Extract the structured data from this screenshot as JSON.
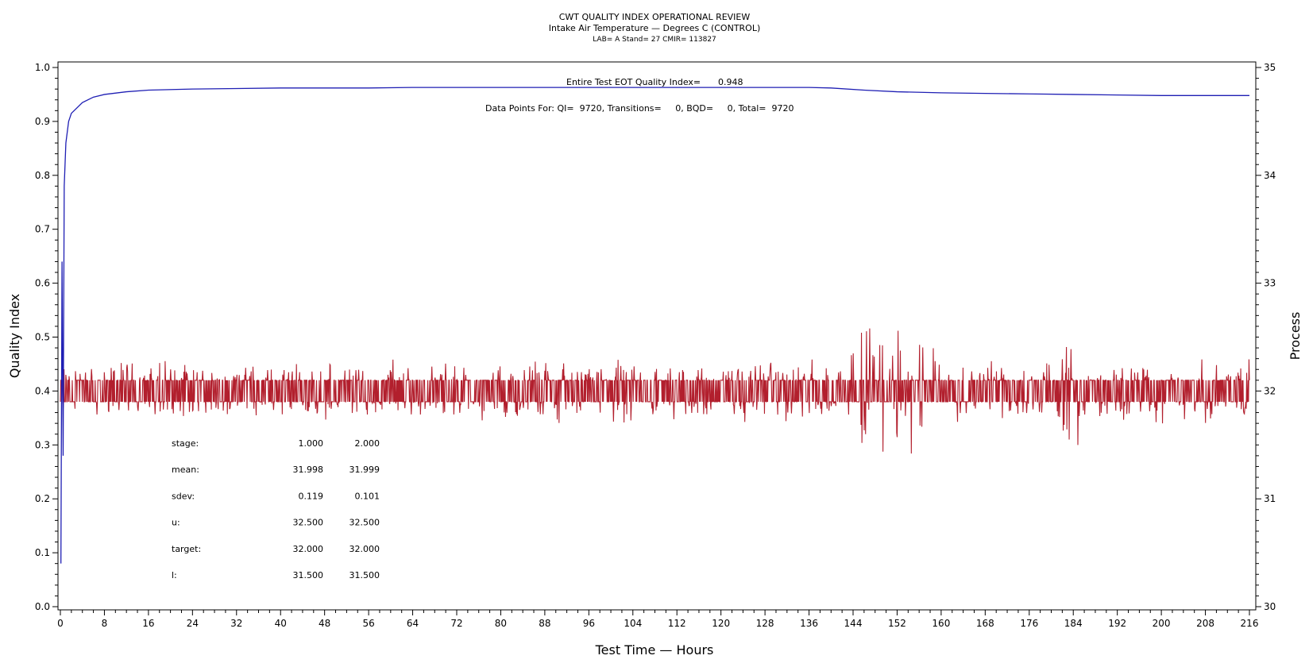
{
  "chart_data": {
    "type": "line",
    "title": "CWT QUALITY INDEX OPERATIONAL REVIEW",
    "subtitle": "Intake Air Temperature — Degrees C (CONTROL)",
    "subtitle2": "LAB= A Stand= 27 CMIR= 113827",
    "xlabel": "Test Time — Hours",
    "ylabel": "Quality Index",
    "y2label": "Process",
    "xlim": [
      0,
      216
    ],
    "ylim": [
      0,
      1.0
    ],
    "y2lim": [
      30,
      35
    ],
    "x_ticks": [
      0,
      8,
      16,
      24,
      32,
      40,
      48,
      56,
      64,
      72,
      80,
      88,
      96,
      104,
      112,
      120,
      128,
      136,
      144,
      152,
      160,
      168,
      176,
      184,
      192,
      200,
      208,
      216
    ],
    "y_ticks": [
      "0.0",
      "0.1",
      "0.2",
      "0.3",
      "0.4",
      "0.5",
      "0.6",
      "0.7",
      "0.8",
      "0.9",
      "1.0"
    ],
    "y2_ticks": [
      "30",
      "31",
      "32",
      "33",
      "34",
      "35"
    ],
    "annotations": {
      "eot_label": "Entire Test EOT Quality Index=",
      "eot_value": "0.948",
      "data_points": "Data Points For: QI=  9720, Transitions=     0, BQD=     0, Total=  9720"
    },
    "stats": {
      "rows": [
        {
          "label": "stage:",
          "s1": "1.000",
          "s2": "2.000"
        },
        {
          "label": "mean:",
          "s1": "31.998",
          "s2": "31.999"
        },
        {
          "label": "sdev:",
          "s1": "0.119",
          "s2": "0.101"
        },
        {
          "label": "u:",
          "s1": "32.500",
          "s2": "32.500"
        },
        {
          "label": "target:",
          "s1": "32.000",
          "s2": "32.000"
        },
        {
          "label": "l:",
          "s1": "31.500",
          "s2": "31.500"
        }
      ]
    },
    "series": [
      {
        "axis": "left",
        "color": "#1f1fb4",
        "x": [
          0.1,
          0.3,
          0.5,
          0.7,
          1.0,
          1.5,
          2.0,
          3.0,
          4.0,
          6.0,
          8.0,
          12.0,
          16.0,
          24.0,
          32.0,
          40.0,
          48.0,
          56.0,
          64.0,
          80.0,
          96.0,
          112.0,
          120.0,
          128.0,
          132.0,
          136.0,
          140.0,
          146.0,
          152.0,
          160.0,
          168.0,
          176.0,
          184.0,
          192.0,
          200.0,
          208.0,
          216.0
        ],
        "y": [
          0.08,
          0.64,
          0.28,
          0.78,
          0.86,
          0.9,
          0.915,
          0.925,
          0.935,
          0.945,
          0.95,
          0.955,
          0.958,
          0.96,
          0.961,
          0.962,
          0.962,
          0.962,
          0.963,
          0.963,
          0.963,
          0.963,
          0.963,
          0.963,
          0.963,
          0.963,
          0.962,
          0.958,
          0.955,
          0.953,
          0.952,
          0.951,
          0.95,
          0.949,
          0.948,
          0.948,
          0.948
        ]
      },
      {
        "axis": "right",
        "color": "#b21f2d",
        "style": "process-trace",
        "center": 32.0,
        "band": [
          31.9,
          32.1
        ]
      }
    ],
    "grid": false,
    "legend": "none"
  }
}
